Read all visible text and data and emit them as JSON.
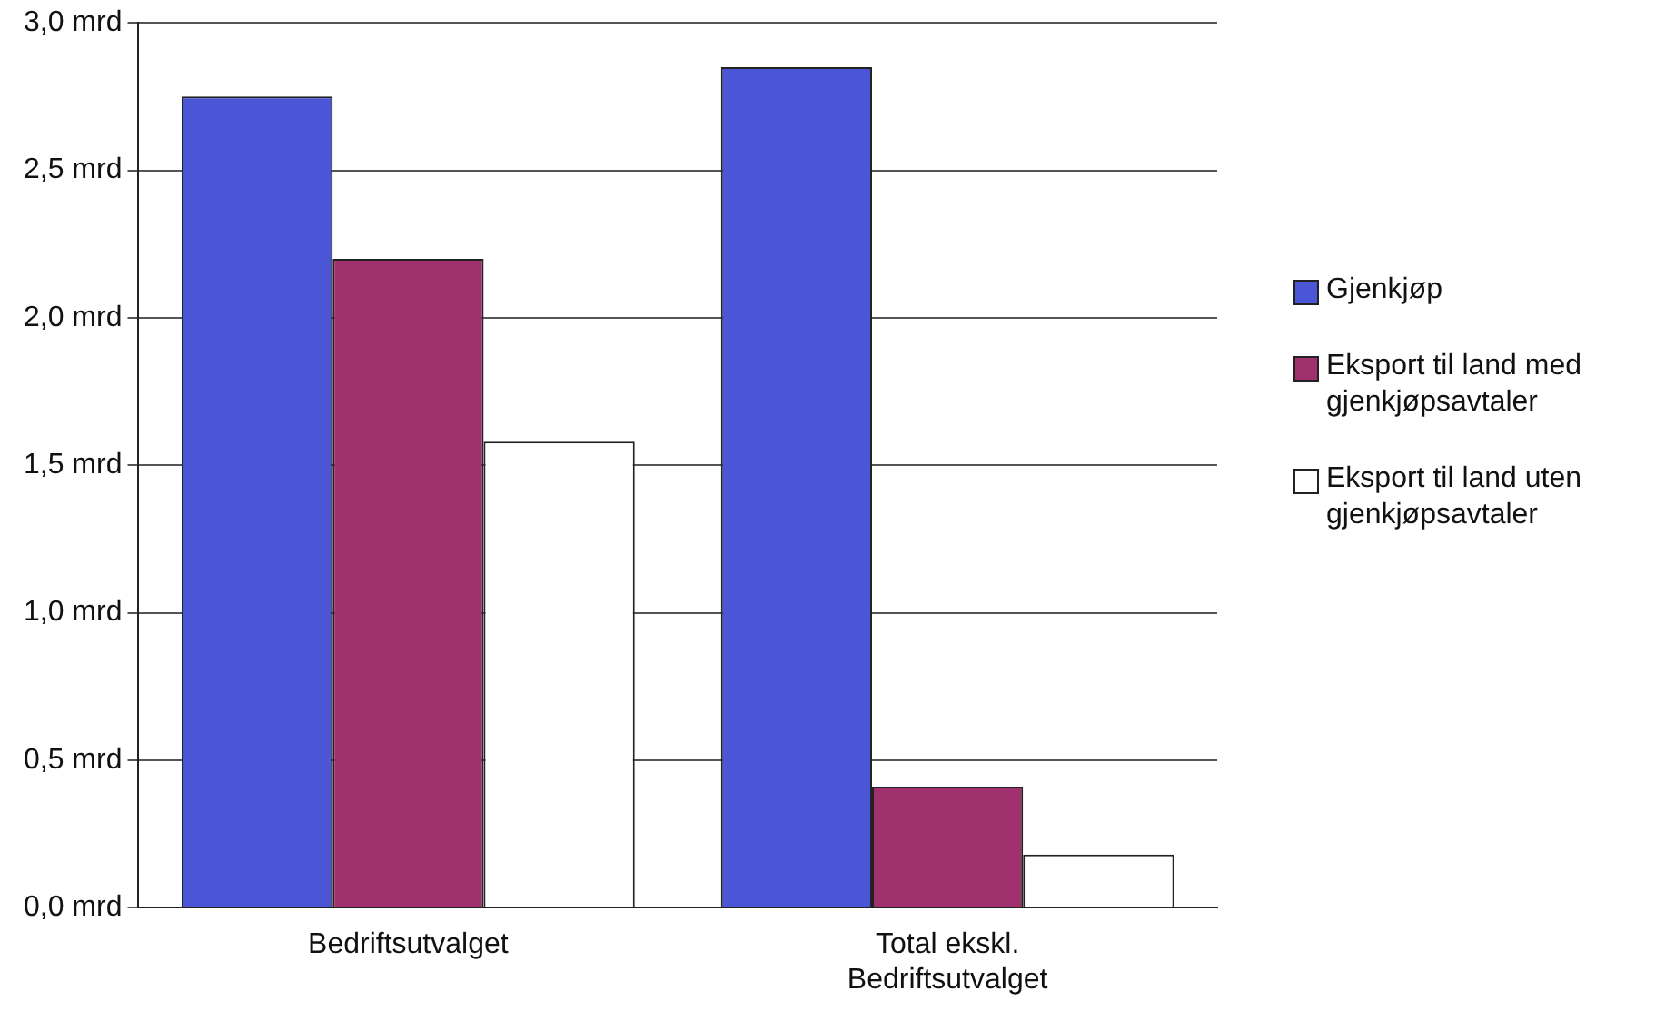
{
  "chart_data": {
    "type": "bar",
    "categories": [
      "Bedriftsutvalget",
      "Total ekskl. Bedriftsutvalget"
    ],
    "series": [
      {
        "name": "Gjenkjøp",
        "color": "#4a56d6",
        "values": [
          2.75,
          2.85
        ]
      },
      {
        "name": "Eksport til land med gjenkjøpsavtaler",
        "color": "#a0306e",
        "values": [
          2.2,
          0.41
        ]
      },
      {
        "name": "Eksport til land uten gjenkjøpsavtaler",
        "color": "#ffffff",
        "values": [
          1.58,
          0.18
        ]
      }
    ],
    "ylim": [
      0,
      3
    ],
    "yticks": [
      {
        "value": 0,
        "label": "0,0 mrd"
      },
      {
        "value": 0.5,
        "label": "0,5 mrd"
      },
      {
        "value": 1,
        "label": "1,0 mrd"
      },
      {
        "value": 1.5,
        "label": "1,5 mrd"
      },
      {
        "value": 2,
        "label": "2,0 mrd"
      },
      {
        "value": 2.5,
        "label": "2,5 mrd"
      },
      {
        "value": 3,
        "label": "3,0 mrd"
      }
    ],
    "grid": "y",
    "legend": "right"
  }
}
